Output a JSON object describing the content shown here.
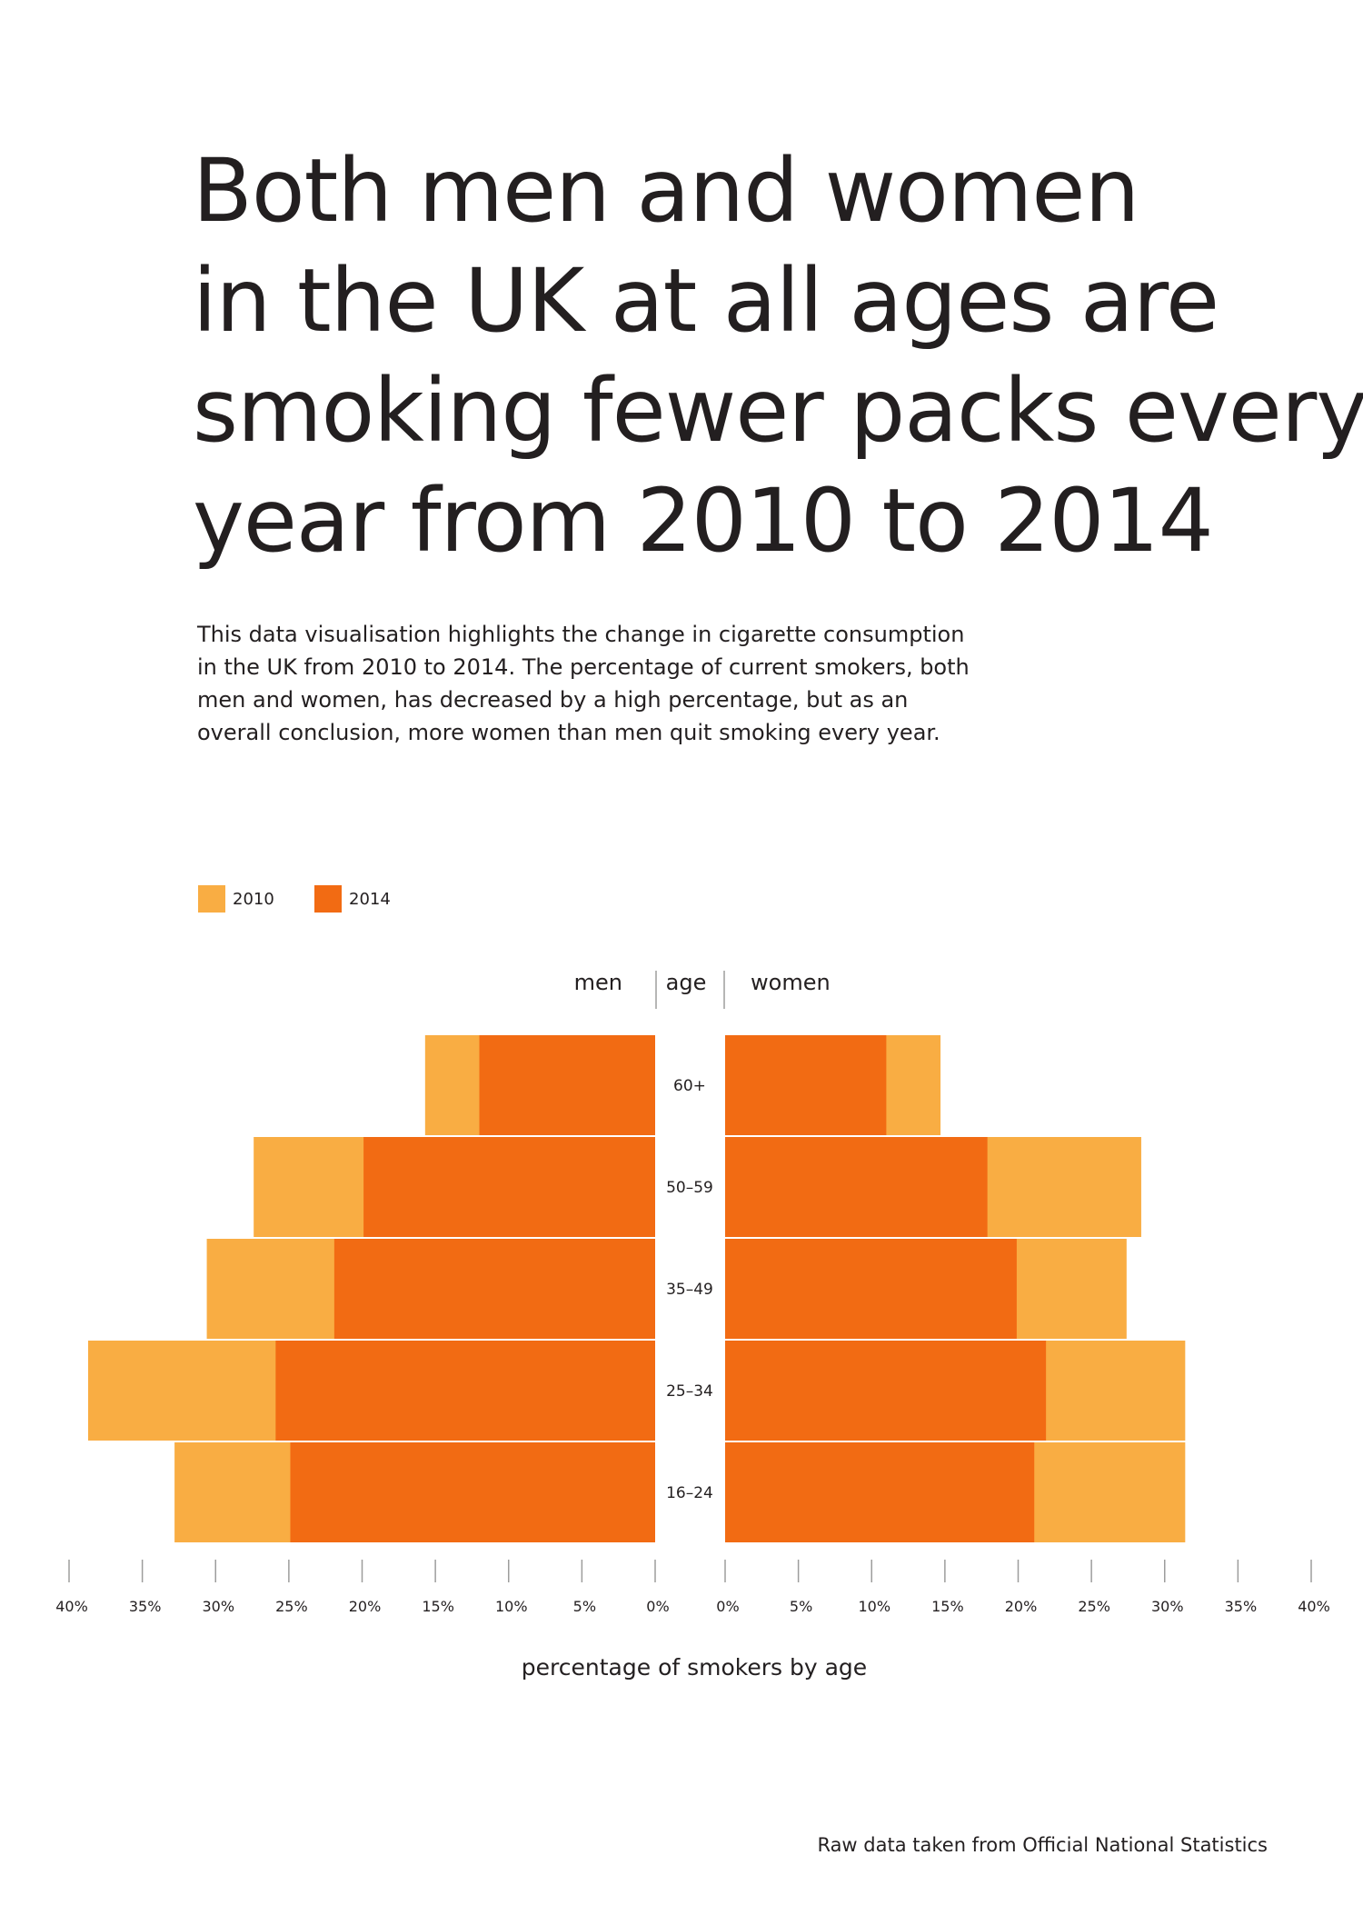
{
  "title_lines": [
    "Both men and women",
    "in the UK at all ages are",
    "smoking fewer packs every",
    "year from 2010 to 2014"
  ],
  "subtitle_lines": [
    "This data visualisation highlights the change in cigarette consumption",
    "in the UK from 2010 to 2014. The percentage of current smokers, both",
    "men and women, has decreased by a high percentage, but as an",
    "overall conclusion, more women than men quit smoking every year."
  ],
  "source": "Raw data taken from Official National Statistics",
  "colors": {
    "series_2010": "#f9ad43",
    "series_2014": "#f26b13",
    "text": "#231f20",
    "axis": "#9d9d9c"
  },
  "chart_data": {
    "type": "bar",
    "orientation": "horizontal-diverging",
    "headers": {
      "left": "men",
      "center": "age",
      "right": "women"
    },
    "xlabel": "percentage of smokers by age",
    "xlim": [
      0,
      40
    ],
    "x_ticks": [
      "0%",
      "5%",
      "10%",
      "15%",
      "20%",
      "25%",
      "30%",
      "35%",
      "40%"
    ],
    "categories": [
      "60+",
      "50–59",
      "35–49",
      "25–34",
      "16–24"
    ],
    "legend": [
      "2010",
      "2014"
    ],
    "men": {
      "2010": [
        15.7,
        27.4,
        30.6,
        38.7,
        32.8
      ],
      "2014": [
        12.0,
        19.9,
        21.9,
        25.9,
        24.9
      ]
    },
    "women": {
      "2010": [
        14.7,
        28.4,
        27.4,
        31.4,
        31.4
      ],
      "2014": [
        11.0,
        17.9,
        19.9,
        21.9,
        21.1
      ]
    }
  }
}
